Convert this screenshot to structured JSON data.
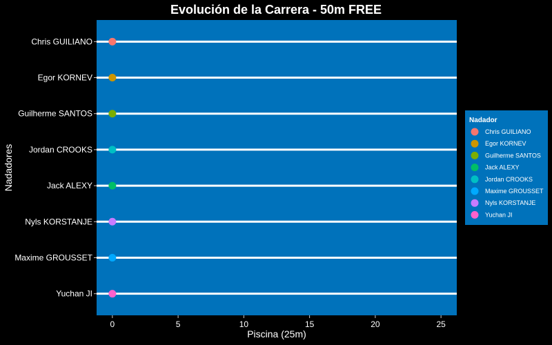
{
  "colors": {
    "background": "#000000",
    "panel": "#0072bb",
    "lane_line": "#ffffff",
    "text": "#ffffff"
  },
  "chart_data": {
    "type": "scatter",
    "title": "Evolución de la Carrera - 50m FREE",
    "xlabel": "Piscina (25m)",
    "ylabel": "Nadadores",
    "xlim": [
      -1.2,
      26.2
    ],
    "x_ticks": [
      0,
      5,
      10,
      15,
      20,
      25
    ],
    "grid": false,
    "legend_position": "right",
    "legend_title": "Nadador",
    "legend_entries": [
      {
        "name": "Chris GUILIANO",
        "color": "#f8766d"
      },
      {
        "name": "Egor KORNEV",
        "color": "#cd9600"
      },
      {
        "name": "Guilherme SANTOS",
        "color": "#7cae00"
      },
      {
        "name": "Jack ALEXY",
        "color": "#00be67"
      },
      {
        "name": "Jordan CROOKS",
        "color": "#00bfc4"
      },
      {
        "name": "Maxime GROUSSET",
        "color": "#00a9ff"
      },
      {
        "name": "Nyls KORSTANJE",
        "color": "#c77cff"
      },
      {
        "name": "Yuchan JI",
        "color": "#ff61cc"
      }
    ],
    "categories": [
      "Chris GUILIANO",
      "Egor KORNEV",
      "Guilherme SANTOS",
      "Jordan CROOKS",
      "Jack ALEXY",
      "Nyls KORSTANJE",
      "Maxime GROUSSET",
      "Yuchan JI"
    ],
    "series": [
      {
        "name": "Chris GUILIANO",
        "x": 0,
        "y": "Chris GUILIANO",
        "color": "#f8766d"
      },
      {
        "name": "Egor KORNEV",
        "x": 0,
        "y": "Egor KORNEV",
        "color": "#cd9600"
      },
      {
        "name": "Guilherme SANTOS",
        "x": 0,
        "y": "Guilherme SANTOS",
        "color": "#7cae00"
      },
      {
        "name": "Jordan CROOKS",
        "x": 0,
        "y": "Jordan CROOKS",
        "color": "#00bfc4"
      },
      {
        "name": "Jack ALEXY",
        "x": 0,
        "y": "Jack ALEXY",
        "color": "#00be67"
      },
      {
        "name": "Nyls KORSTANJE",
        "x": 0,
        "y": "Nyls KORSTANJE",
        "color": "#c77cff"
      },
      {
        "name": "Maxime GROUSSET",
        "x": 0,
        "y": "Maxime GROUSSET",
        "color": "#00a9ff"
      },
      {
        "name": "Yuchan JI",
        "x": 0,
        "y": "Yuchan JI",
        "color": "#ff61cc"
      }
    ]
  }
}
